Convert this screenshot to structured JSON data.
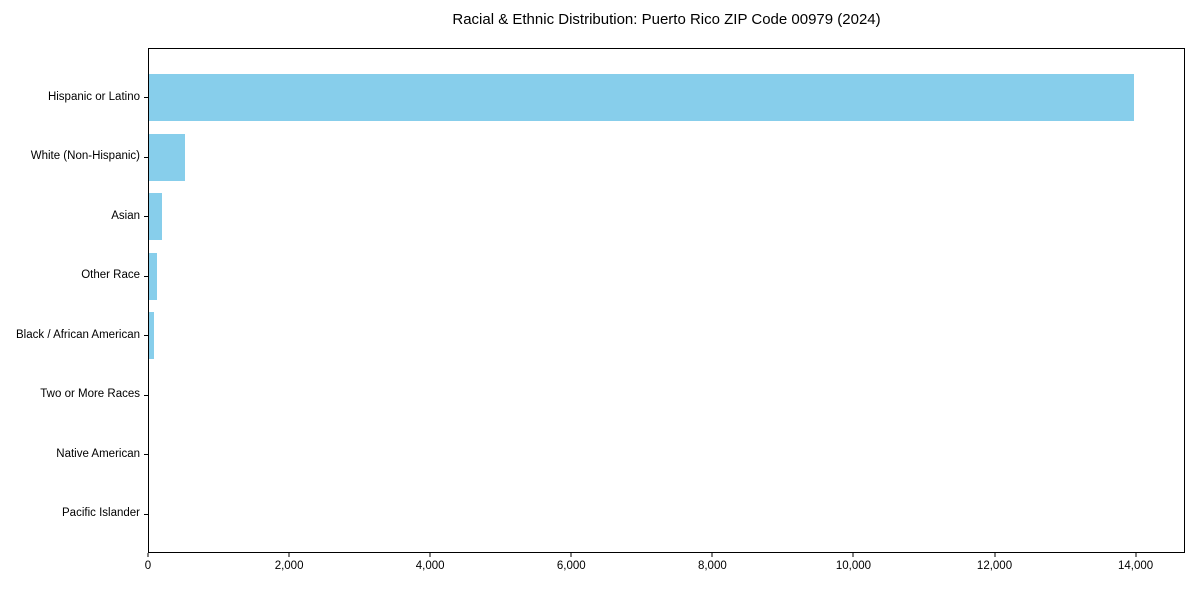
{
  "chart_data": {
    "type": "bar",
    "orientation": "horizontal",
    "title": "Racial & Ethnic Distribution: Puerto Rico ZIP Code 00979 (2024)",
    "categories": [
      "Hispanic or Latino",
      "White (Non-Hispanic)",
      "Asian",
      "Other Race",
      "Black / African American",
      "Two or More Races",
      "Native American",
      "Pacific Islander"
    ],
    "values": [
      13990,
      505,
      190,
      120,
      75,
      0,
      0,
      0
    ],
    "xlabel": "",
    "ylabel": "",
    "xlim": [
      0,
      14700
    ],
    "x_ticks": [
      0,
      2000,
      4000,
      6000,
      8000,
      10000,
      12000,
      14000
    ],
    "x_tick_labels": [
      "0",
      "2,000",
      "4,000",
      "6,000",
      "8,000",
      "10,000",
      "12,000",
      "14,000"
    ],
    "bar_color": "#87CEEB",
    "grid": false,
    "legend_position": "none",
    "plot_border_color": "#000000",
    "background_color": "#ffffff",
    "text_color": "#000000"
  }
}
